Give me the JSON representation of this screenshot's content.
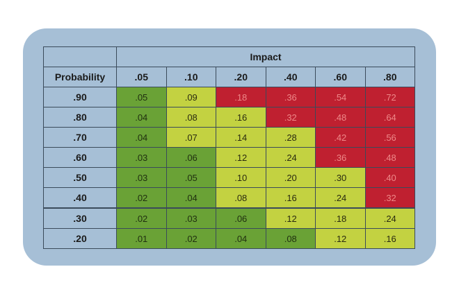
{
  "colors": {
    "panel_bg": "#a6bfd6",
    "low": "#6aa236",
    "medium": "#c3d241",
    "high": "#bf2030"
  },
  "matrix": {
    "impact_label": "Impact",
    "probability_label": "Probability",
    "impact_values": [
      ".05",
      ".10",
      ".20",
      ".40",
      ".60",
      ".80"
    ],
    "rows": [
      {
        "probability": ".90",
        "cells": [
          ".05",
          ".09",
          ".18",
          ".36",
          ".54",
          ".72"
        ],
        "levels": [
          "low",
          "medium",
          "high",
          "high",
          "high",
          "high"
        ]
      },
      {
        "probability": ".80",
        "cells": [
          ".04",
          ".08",
          ".16",
          ".32",
          ".48",
          ".64"
        ],
        "levels": [
          "low",
          "medium",
          "medium",
          "high",
          "high",
          "high"
        ]
      },
      {
        "probability": ".70",
        "cells": [
          ".04",
          ".07",
          ".14",
          ".28",
          ".42",
          ".56"
        ],
        "levels": [
          "low",
          "medium",
          "medium",
          "medium",
          "high",
          "high"
        ]
      },
      {
        "probability": ".60",
        "cells": [
          ".03",
          ".06",
          ".12",
          ".24",
          ".36",
          ".48"
        ],
        "levels": [
          "low",
          "low",
          "medium",
          "medium",
          "high",
          "high"
        ]
      },
      {
        "probability": ".50",
        "cells": [
          ".03",
          ".05",
          ".10",
          ".20",
          ".30",
          ".40"
        ],
        "levels": [
          "low",
          "low",
          "medium",
          "medium",
          "medium",
          "high"
        ]
      },
      {
        "probability": ".40",
        "cells": [
          ".02",
          ".04",
          ".08",
          ".16",
          ".24",
          ".32"
        ],
        "levels": [
          "low",
          "low",
          "medium",
          "medium",
          "medium",
          "high"
        ]
      },
      {
        "probability": ".30",
        "cells": [
          ".02",
          ".03",
          ".06",
          ".12",
          ".18",
          ".24"
        ],
        "levels": [
          "low",
          "low",
          "low",
          "medium",
          "medium",
          "medium"
        ]
      },
      {
        "probability": ".20",
        "cells": [
          ".01",
          ".02",
          ".04",
          ".08",
          ".12",
          ".16"
        ],
        "levels": [
          "low",
          "low",
          "low",
          "low",
          "medium",
          "medium"
        ]
      }
    ]
  }
}
